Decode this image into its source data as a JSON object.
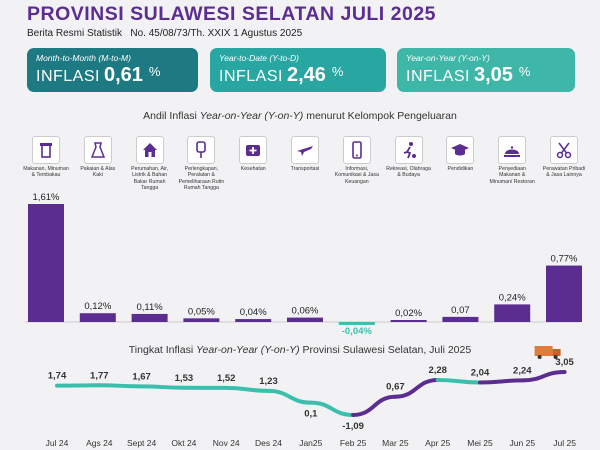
{
  "header": {
    "title": "PROVINSI SULAWESI SELATAN JULI 2025",
    "subtitle": "Berita Resmi Statistik   No. 45/08/73/Th. XXIX 1 Agustus 2025"
  },
  "cards": [
    {
      "caption": "Month-to-Month (M-to-M)",
      "label": "INFLASI",
      "value": "0,61",
      "unit": "%"
    },
    {
      "caption": "Year-to-Date (Y-to-D)",
      "label": "INFLASI",
      "value": "2,46",
      "unit": "%"
    },
    {
      "caption": "Year-on-Year (Y-on-Y)",
      "label": "INFLASI",
      "value": "3,05",
      "unit": "%"
    }
  ],
  "section1": {
    "pre": "Andil Inflasi ",
    "em": "Year-on-Year (Y-on-Y)",
    "post": " menurut Kelompok Pengeluaran"
  },
  "section2": {
    "pre": "Tingkat Inflasi ",
    "em": "Year-on-Year (Y-on-Y)",
    "post": " Provinsi Sulawesi Selatan, Juli  2025"
  },
  "colors": {
    "purple": "#5c2d91",
    "teal": "#3bbfad",
    "card1": "#1d7a82",
    "card2": "#27a6a2",
    "card3": "#3fb7a8"
  },
  "chart_data": [
    {
      "type": "bar",
      "categories": [
        "Makanan, Minuman & Tembakau",
        "Pakaian & Alas Kaki",
        "Perumahan, Air, Listrik & Bahan Bakar Rumah Tangga",
        "Perlengkapan, Peralatan & Pemeliharaan Rutin Rumah Tangga",
        "Kesehatan",
        "Transportasi",
        "Informasi, Komunikasi & Jasa Keuangan",
        "Rekreasi, Olahraga & Budaya",
        "Pendidikan",
        "Penyediaan Makanan & Minuman/ Restoran",
        "Perawatan Pribadi & Jasa Lainnya"
      ],
      "category_icons": [
        "food-icon",
        "clothing-icon",
        "house-icon",
        "appliance-icon",
        "health-icon",
        "airplane-icon",
        "phone-icon",
        "sports-icon",
        "graduation-cap-icon",
        "restaurant-icon",
        "scissors-icon"
      ],
      "values": [
        1.61,
        0.12,
        0.11,
        0.05,
        0.04,
        0.06,
        -0.04,
        0.02,
        0.07,
        0.24,
        0.77
      ],
      "labels": [
        "1,61%",
        "0,12%",
        "0,11%",
        "0,05%",
        "0,04%",
        "0,06%",
        "-0,04%",
        "0,02%",
        "0,07",
        "0,24%",
        "0,77%"
      ],
      "ylim": [
        -0.04,
        1.61
      ]
    },
    {
      "type": "line",
      "x": [
        "Jul 24",
        "Ags 24",
        "Sept 24",
        "Okt 24",
        "Nov 24",
        "Des 24",
        "Jan25",
        "Feb 25",
        "Mar 25",
        "Apr 25",
        "Mei 25",
        "Jun 25",
        "Jul 25"
      ],
      "values": [
        1.74,
        1.77,
        1.67,
        1.53,
        1.52,
        1.23,
        0.1,
        -1.09,
        0.67,
        2.28,
        2.04,
        2.24,
        3.05
      ],
      "labels": [
        "1,74",
        "1,77",
        "1,67",
        "1,53",
        "1,52",
        "1,23",
        "0,1",
        "-1,09",
        "0,67",
        "2,28",
        "2,04",
        "2,24",
        "3,05"
      ],
      "ylim": [
        -1.09,
        3.05
      ]
    }
  ]
}
